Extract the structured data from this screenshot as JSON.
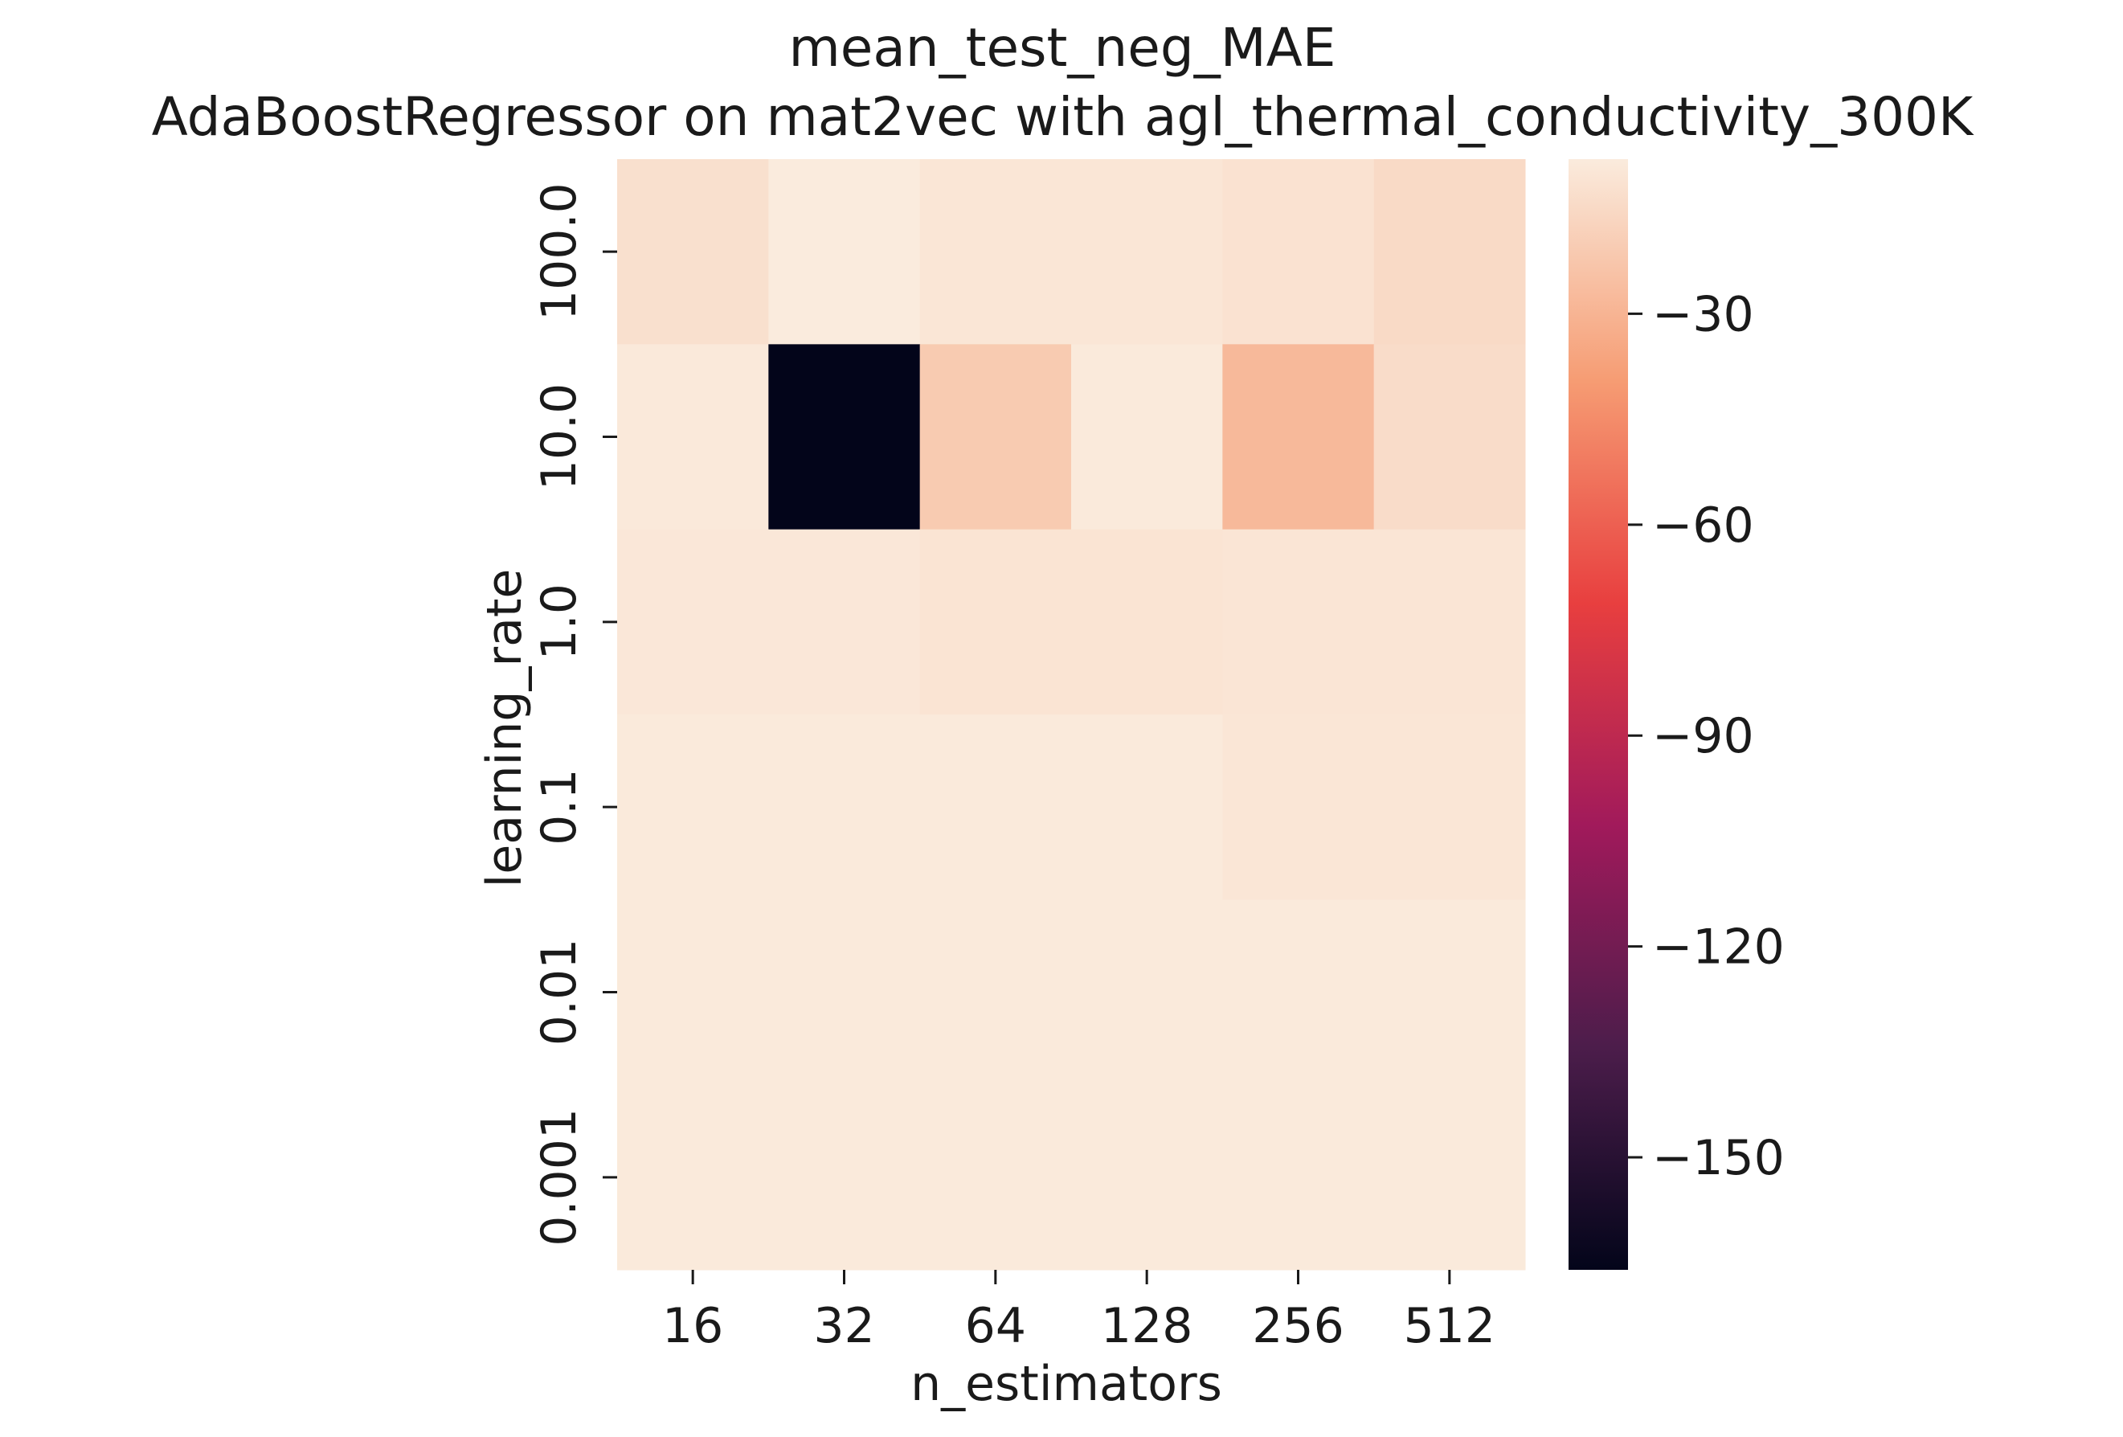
{
  "chart_data": {
    "type": "heatmap",
    "title": "mean_test_neg_MAE",
    "subtitle": "AdaBoostRegressor on mat2vec with agl_thermal_conductivity_300K",
    "xlabel": "n_estimators",
    "ylabel": "learning_rate",
    "x_categories": [
      "16",
      "32",
      "64",
      "128",
      "256",
      "512"
    ],
    "y_categories": [
      "100.0",
      "10.0",
      "1.0",
      "0.1",
      "0.01",
      "0.001"
    ],
    "values": [
      [
        -12.5,
        -8.0,
        -10.0,
        -10.0,
        -11.5,
        -15.0
      ],
      [
        -9.0,
        -166.0,
        -21.0,
        -8.5,
        -28.0,
        -14.0
      ],
      [
        -9.5,
        -9.5,
        -11.0,
        -11.0,
        -10.5,
        -10.5
      ],
      [
        -8.5,
        -8.5,
        -8.5,
        -8.5,
        -10.0,
        -10.0
      ],
      [
        -8.5,
        -8.5,
        -8.5,
        -8.5,
        -8.5,
        -8.5
      ],
      [
        -8.5,
        -8.5,
        -8.5,
        -8.5,
        -8.5,
        -8.5
      ]
    ],
    "colorbar": {
      "vmin": -166,
      "vmax": -8,
      "ticks": [
        -30,
        -60,
        -90,
        -120,
        -150
      ],
      "tick_labels": [
        "−30",
        "−60",
        "−90",
        "−120",
        "−150"
      ]
    },
    "colormap": "rocket",
    "grid": false
  }
}
